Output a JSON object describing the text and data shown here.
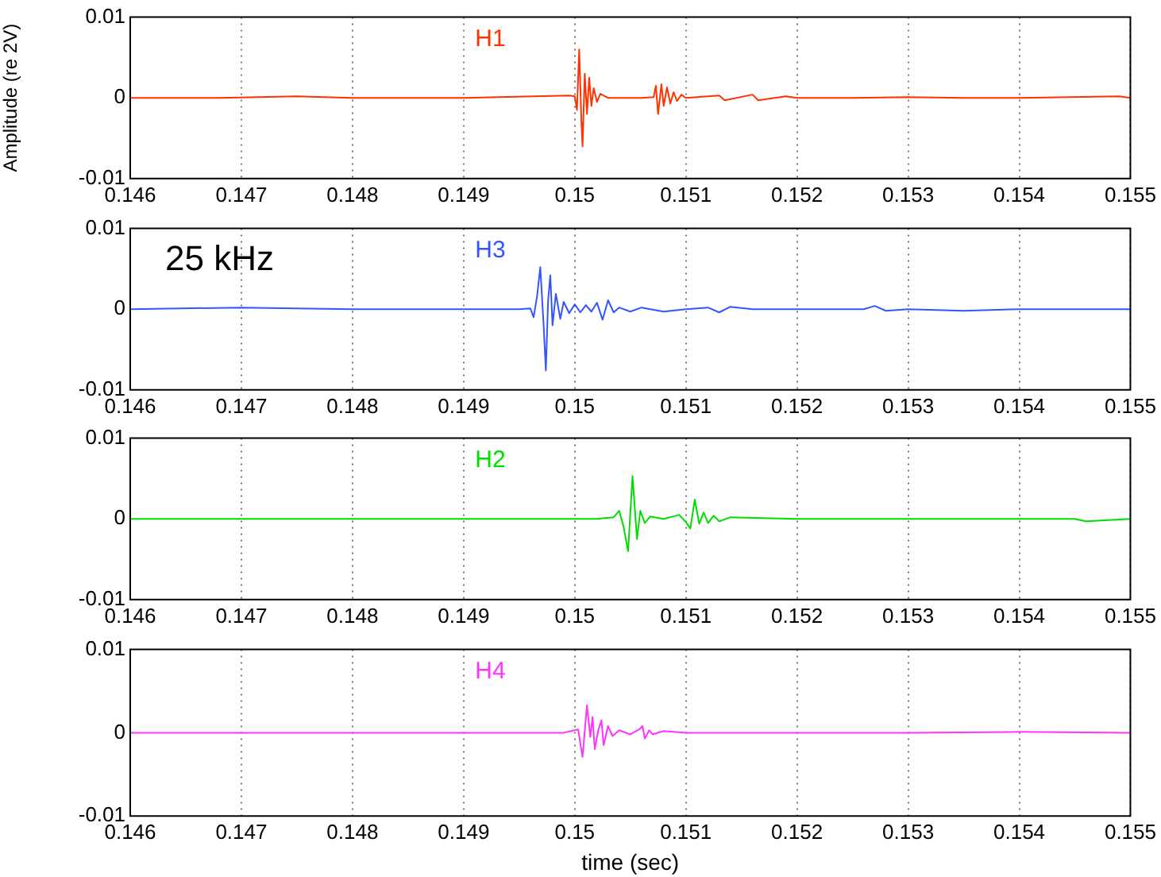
{
  "chart_data": [
    {
      "type": "line",
      "ylabel": "Amplitude (re 2V)",
      "grid": "x",
      "xlim": [
        0.146,
        0.155
      ],
      "xticks": [
        0.146,
        0.147,
        0.148,
        0.149,
        0.15,
        0.151,
        0.152,
        0.153,
        0.154,
        0.155
      ],
      "ylim": [
        -0.01,
        0.01
      ],
      "yticks": [
        -0.01,
        0,
        0.01
      ],
      "series": [
        {
          "name": "H1",
          "color": "#ff3300",
          "x": [
            0.146,
            0.1468,
            0.1475,
            0.148,
            0.149,
            0.14995,
            0.15,
            0.15002,
            0.15004,
            0.15006,
            0.15007,
            0.15009,
            0.15011,
            0.15013,
            0.15015,
            0.15017,
            0.1502,
            0.15023,
            0.1503,
            0.1506,
            0.15071,
            0.15073,
            0.15075,
            0.15078,
            0.1508,
            0.15083,
            0.15086,
            0.15089,
            0.15092,
            0.15096,
            0.151,
            0.1513,
            0.15135,
            0.1516,
            0.15165,
            0.1519,
            0.152,
            0.1525,
            0.153,
            0.1535,
            0.154,
            0.1549,
            0.155
          ],
          "values": [
            0,
            0,
            0.0002,
            0,
            0,
            0.0003,
            0.0002,
            -0.0015,
            0.006,
            -0.003,
            -0.006,
            0.003,
            -0.002,
            0.0025,
            -0.001,
            0.0012,
            -0.0005,
            0.0005,
            0,
            0,
            0.0001,
            0.0015,
            -0.002,
            0.0017,
            -0.001,
            0.0013,
            -0.0007,
            0.0007,
            -0.0004,
            0.0004,
            0,
            0.0003,
            -0.0003,
            0.0004,
            -0.0003,
            0.0002,
            0,
            0,
            0.0001,
            0,
            0,
            0.0002,
            0
          ]
        }
      ]
    },
    {
      "type": "line",
      "annotations": [
        "25 kHz"
      ],
      "grid": "x",
      "xlim": [
        0.146,
        0.155
      ],
      "xticks": [
        0.146,
        0.147,
        0.148,
        0.149,
        0.15,
        0.151,
        0.152,
        0.153,
        0.154,
        0.155
      ],
      "ylim": [
        -0.01,
        0.01
      ],
      "yticks": [
        -0.01,
        0,
        0.01
      ],
      "series": [
        {
          "name": "H3",
          "color": "#3355ff",
          "x": [
            0.146,
            0.147,
            0.148,
            0.149,
            0.1495,
            0.1496,
            0.14963,
            0.14966,
            0.14969,
            0.14972,
            0.14974,
            0.14976,
            0.14978,
            0.1498,
            0.14983,
            0.14987,
            0.1499,
            0.14995,
            0.15,
            0.15005,
            0.1501,
            0.15015,
            0.1502,
            0.15025,
            0.1503,
            0.15035,
            0.1504,
            0.1505,
            0.1506,
            0.1508,
            0.151,
            0.1512,
            0.1513,
            0.1514,
            0.1516,
            0.152,
            0.1526,
            0.1527,
            0.1528,
            0.153,
            0.1535,
            0.154,
            0.155
          ],
          "values": [
            0,
            0.0002,
            0,
            0,
            0,
            0.0001,
            -0.001,
            0.0015,
            0.0052,
            -0.002,
            -0.0076,
            0.001,
            0.0042,
            -0.002,
            0.0019,
            -0.0012,
            0.0009,
            -0.0005,
            0.0006,
            -0.0004,
            0.0005,
            -0.0003,
            0.0008,
            -0.0013,
            0.0011,
            -0.0004,
            0.0002,
            -0.0003,
            0.0002,
            -0.0003,
            0,
            0.0002,
            -0.0004,
            0.0003,
            0,
            0,
            0,
            0.0004,
            -0.0002,
            0,
            -0.0002,
            0,
            0
          ]
        }
      ]
    },
    {
      "type": "line",
      "grid": "x",
      "xlim": [
        0.146,
        0.155
      ],
      "xticks": [
        0.146,
        0.147,
        0.148,
        0.149,
        0.15,
        0.151,
        0.152,
        0.153,
        0.154,
        0.155
      ],
      "ylim": [
        -0.01,
        0.01
      ],
      "yticks": [
        -0.01,
        0,
        0.01
      ],
      "series": [
        {
          "name": "H2",
          "color": "#00dd00",
          "x": [
            0.146,
            0.147,
            0.148,
            0.149,
            0.1502,
            0.15035,
            0.1504,
            0.15044,
            0.15048,
            0.15052,
            0.15056,
            0.15059,
            0.15063,
            0.15068,
            0.1508,
            0.15094,
            0.151,
            0.15104,
            0.15108,
            0.15112,
            0.15116,
            0.1512,
            0.15125,
            0.1513,
            0.1514,
            0.152,
            0.153,
            0.1545,
            0.1546,
            0.155
          ],
          "values": [
            0,
            0,
            0,
            0,
            0,
            0.0002,
            0.001,
            -0.001,
            -0.004,
            0.0053,
            -0.0025,
            0.001,
            -0.0005,
            0.0003,
            0,
            0.0005,
            -0.0004,
            -0.0012,
            0.0024,
            -0.0006,
            0.0008,
            -0.0005,
            0.0004,
            -0.0003,
            0.0002,
            0,
            0,
            0,
            -0.0003,
            0
          ]
        }
      ]
    },
    {
      "type": "line",
      "xlabel": "time (sec)",
      "grid": "x",
      "xlim": [
        0.146,
        0.155
      ],
      "xticks": [
        0.146,
        0.147,
        0.148,
        0.149,
        0.15,
        0.151,
        0.152,
        0.153,
        0.154,
        0.155
      ],
      "ylim": [
        -0.01,
        0.01
      ],
      "yticks": [
        -0.01,
        0,
        0.01
      ],
      "series": [
        {
          "name": "H4",
          "color": "#ff33ff",
          "x": [
            0.146,
            0.147,
            0.148,
            0.149,
            0.1499,
            0.15003,
            0.15007,
            0.15011,
            0.15014,
            0.15016,
            0.15018,
            0.15021,
            0.15024,
            0.15026,
            0.1503,
            0.15034,
            0.1504,
            0.1505,
            0.15058,
            0.15061,
            0.15063,
            0.15067,
            0.1507,
            0.1508,
            0.151,
            0.152,
            0.153,
            0.154,
            0.155
          ],
          "values": [
            0,
            0,
            0,
            0,
            0,
            0.0004,
            -0.0029,
            0.0033,
            -0.0005,
            0.0019,
            -0.002,
            0.0002,
            0.0015,
            -0.0015,
            0.0008,
            -0.0004,
            0.0003,
            -0.0002,
            0.0004,
            0.0008,
            -0.0007,
            0.0003,
            -0.0002,
            0.0002,
            0,
            0,
            0,
            0.0001,
            0
          ]
        }
      ]
    }
  ]
}
